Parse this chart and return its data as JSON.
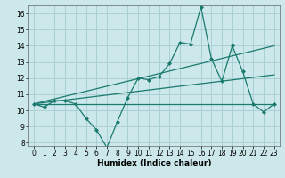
{
  "x": [
    0,
    1,
    2,
    3,
    4,
    5,
    6,
    7,
    8,
    9,
    10,
    11,
    12,
    13,
    14,
    15,
    16,
    17,
    18,
    19,
    20,
    21,
    22,
    23
  ],
  "y_main": [
    10.4,
    10.2,
    10.6,
    10.6,
    10.4,
    9.5,
    8.8,
    7.7,
    9.3,
    10.8,
    12.0,
    11.9,
    12.1,
    12.9,
    14.2,
    14.1,
    16.4,
    13.2,
    11.8,
    14.0,
    12.4,
    10.4,
    9.9,
    10.4
  ],
  "y_hline": 10.4,
  "trend1_x": [
    0,
    23
  ],
  "trend1_y": [
    10.4,
    12.2
  ],
  "trend2_x": [
    0,
    23
  ],
  "trend2_y": [
    10.4,
    14.0
  ],
  "background_color": "#cce8ea",
  "grid_color": "#aad0d4",
  "line_color": "#1a7a6e",
  "xlabel": "Humidex (Indice chaleur)",
  "xlim": [
    -0.5,
    23.5
  ],
  "ylim": [
    7.8,
    16.5
  ],
  "yticks": [
    8,
    9,
    10,
    11,
    12,
    13,
    14,
    15,
    16
  ],
  "xticks": [
    0,
    1,
    2,
    3,
    4,
    5,
    6,
    7,
    8,
    9,
    10,
    11,
    12,
    13,
    14,
    15,
    16,
    17,
    18,
    19,
    20,
    21,
    22,
    23
  ],
  "xlabel_fontsize": 6.5,
  "tick_fontsize": 5.5
}
